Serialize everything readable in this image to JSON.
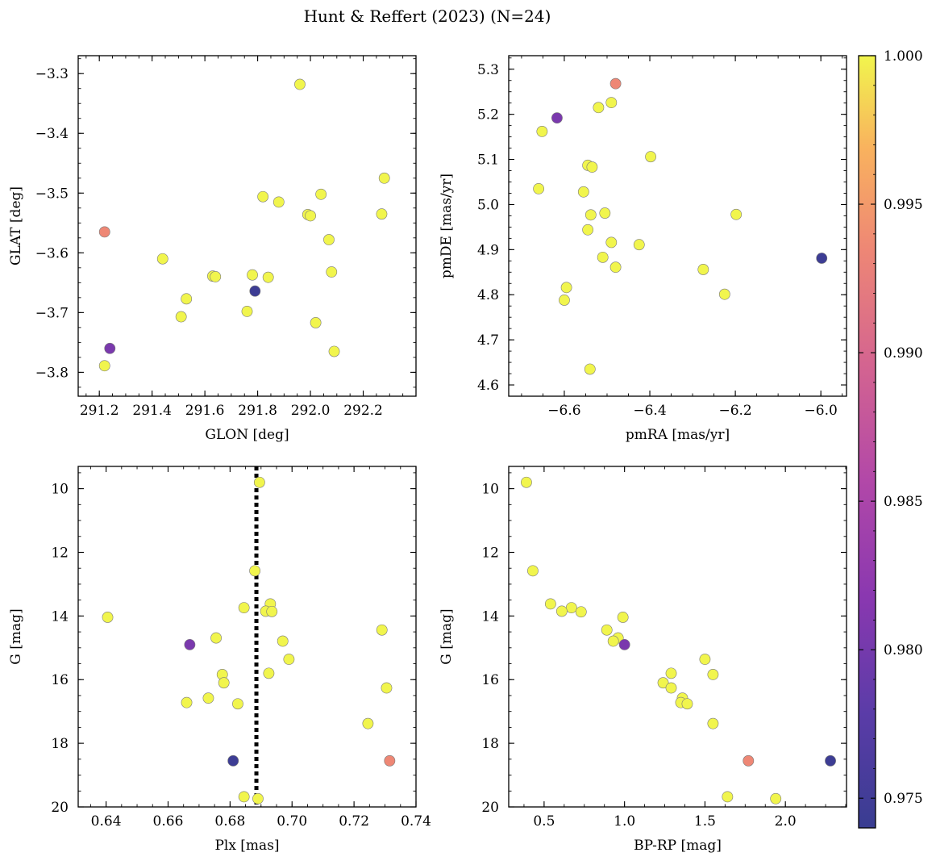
{
  "figure": {
    "title": "Hunt & Reffert (2023) (N=24)"
  },
  "colorbar": {
    "vmin": 0.974,
    "vmax": 1.0,
    "colormap": "plasma",
    "ticks": [
      0.975,
      0.98,
      0.985,
      0.99,
      0.995,
      1.0
    ],
    "tick_labels": [
      "0.975",
      "0.980",
      "0.985",
      "0.990",
      "0.995",
      "1.000"
    ]
  },
  "chart_data": [
    {
      "type": "scatter",
      "xlabel": "GLON [deg]",
      "ylabel": "GLAT [deg]",
      "xlim": [
        291.12,
        292.4
      ],
      "ylim": [
        -3.84,
        -3.27
      ],
      "xticks": [
        291.2,
        291.4,
        291.6,
        291.8,
        292.0,
        292.2
      ],
      "xtick_labels": [
        "291.2",
        "291.4",
        "291.6",
        "291.8",
        "292.0",
        "292.2"
      ],
      "yticks": [
        -3.3,
        -3.4,
        -3.5,
        -3.6,
        -3.7,
        -3.8
      ],
      "ytick_labels": [
        "−3.3",
        "−3.4",
        "−3.5",
        "−3.6",
        "−3.7",
        "−3.8"
      ],
      "points": [
        {
          "x": 291.96,
          "y": -3.318,
          "c": 1.0
        },
        {
          "x": 292.28,
          "y": -3.475,
          "c": 1.0
        },
        {
          "x": 292.04,
          "y": -3.502,
          "c": 1.0
        },
        {
          "x": 291.82,
          "y": -3.506,
          "c": 1.0
        },
        {
          "x": 291.88,
          "y": -3.515,
          "c": 1.0
        },
        {
          "x": 291.99,
          "y": -3.536,
          "c": 1.0
        },
        {
          "x": 292.0,
          "y": -3.538,
          "c": 1.0
        },
        {
          "x": 292.27,
          "y": -3.535,
          "c": 1.0
        },
        {
          "x": 291.22,
          "y": -3.565,
          "c": 0.9935
        },
        {
          "x": 292.07,
          "y": -3.578,
          "c": 1.0
        },
        {
          "x": 291.44,
          "y": -3.61,
          "c": 1.0
        },
        {
          "x": 292.08,
          "y": -3.632,
          "c": 1.0
        },
        {
          "x": 291.63,
          "y": -3.639,
          "c": 1.0
        },
        {
          "x": 291.64,
          "y": -3.64,
          "c": 1.0
        },
        {
          "x": 291.78,
          "y": -3.637,
          "c": 1.0
        },
        {
          "x": 291.84,
          "y": -3.641,
          "c": 1.0
        },
        {
          "x": 291.79,
          "y": -3.664,
          "c": 0.9745
        },
        {
          "x": 291.53,
          "y": -3.677,
          "c": 1.0
        },
        {
          "x": 291.76,
          "y": -3.698,
          "c": 1.0
        },
        {
          "x": 291.51,
          "y": -3.707,
          "c": 1.0
        },
        {
          "x": 292.02,
          "y": -3.717,
          "c": 1.0
        },
        {
          "x": 291.24,
          "y": -3.76,
          "c": 0.9805
        },
        {
          "x": 292.09,
          "y": -3.765,
          "c": 1.0
        },
        {
          "x": 291.22,
          "y": -3.789,
          "c": 1.0
        }
      ]
    },
    {
      "type": "scatter",
      "xlabel": "pmRA [mas/yr]",
      "ylabel": "pmDE [mas/yr]",
      "xlim": [
        -6.73,
        -5.94
      ],
      "ylim": [
        4.575,
        5.33
      ],
      "xticks": [
        -6.6,
        -6.4,
        -6.2,
        -6.0
      ],
      "xtick_labels": [
        "−6.6",
        "−6.4",
        "−6.2",
        "−6.0"
      ],
      "yticks": [
        4.6,
        4.7,
        4.8,
        4.9,
        5.0,
        5.1,
        5.2,
        5.3
      ],
      "ytick_labels": [
        "4.6",
        "4.7",
        "4.8",
        "4.9",
        "5.0",
        "5.1",
        "5.2",
        "5.3"
      ],
      "points": [
        {
          "x": -6.48,
          "y": 5.268,
          "c": 0.9935
        },
        {
          "x": -6.49,
          "y": 5.226,
          "c": 1.0
        },
        {
          "x": -6.52,
          "y": 5.215,
          "c": 1.0
        },
        {
          "x": -6.617,
          "y": 5.192,
          "c": 0.9805
        },
        {
          "x": -6.652,
          "y": 5.162,
          "c": 1.0
        },
        {
          "x": -6.398,
          "y": 5.106,
          "c": 1.0
        },
        {
          "x": -6.545,
          "y": 5.087,
          "c": 1.0
        },
        {
          "x": -6.535,
          "y": 5.083,
          "c": 1.0
        },
        {
          "x": -6.66,
          "y": 5.035,
          "c": 1.0
        },
        {
          "x": -6.555,
          "y": 5.028,
          "c": 1.0
        },
        {
          "x": -6.505,
          "y": 4.981,
          "c": 1.0
        },
        {
          "x": -6.538,
          "y": 4.977,
          "c": 1.0
        },
        {
          "x": -6.198,
          "y": 4.978,
          "c": 1.0
        },
        {
          "x": -6.545,
          "y": 4.944,
          "c": 1.0
        },
        {
          "x": -6.49,
          "y": 4.916,
          "c": 1.0
        },
        {
          "x": -6.425,
          "y": 4.911,
          "c": 1.0
        },
        {
          "x": -6.51,
          "y": 4.883,
          "c": 1.0
        },
        {
          "x": -5.998,
          "y": 4.881,
          "c": 0.9745
        },
        {
          "x": -6.48,
          "y": 4.861,
          "c": 1.0
        },
        {
          "x": -6.275,
          "y": 4.856,
          "c": 1.0
        },
        {
          "x": -6.595,
          "y": 4.816,
          "c": 1.0
        },
        {
          "x": -6.225,
          "y": 4.801,
          "c": 1.0
        },
        {
          "x": -6.6,
          "y": 4.788,
          "c": 1.0
        },
        {
          "x": -6.54,
          "y": 4.635,
          "c": 1.0
        }
      ]
    },
    {
      "type": "scatter",
      "xlabel": "Plx [mas]",
      "ylabel": "G [mag]",
      "xlim": [
        0.631,
        0.74
      ],
      "ylim": [
        20.0,
        9.3
      ],
      "y_inverted": true,
      "xticks": [
        0.64,
        0.66,
        0.68,
        0.7,
        0.72,
        0.74
      ],
      "xtick_labels": [
        "0.64",
        "0.66",
        "0.68",
        "0.70",
        "0.72",
        "0.74"
      ],
      "yticks": [
        10,
        12,
        14,
        16,
        18,
        20
      ],
      "ytick_labels": [
        "10",
        "12",
        "14",
        "16",
        "18",
        "20"
      ],
      "vline": {
        "x": 0.6885,
        "style": "dotted"
      },
      "points": [
        {
          "x": 0.6895,
          "y": 9.8,
          "c": 1.0
        },
        {
          "x": 0.688,
          "y": 12.58,
          "c": 1.0
        },
        {
          "x": 0.693,
          "y": 13.62,
          "c": 1.0
        },
        {
          "x": 0.6845,
          "y": 13.74,
          "c": 1.0
        },
        {
          "x": 0.6915,
          "y": 13.85,
          "c": 1.0
        },
        {
          "x": 0.6935,
          "y": 13.86,
          "c": 1.0
        },
        {
          "x": 0.6405,
          "y": 14.04,
          "c": 1.0
        },
        {
          "x": 0.729,
          "y": 14.44,
          "c": 1.0
        },
        {
          "x": 0.6755,
          "y": 14.69,
          "c": 1.0
        },
        {
          "x": 0.697,
          "y": 14.79,
          "c": 1.0
        },
        {
          "x": 0.667,
          "y": 14.9,
          "c": 0.9805
        },
        {
          "x": 0.699,
          "y": 15.36,
          "c": 1.0
        },
        {
          "x": 0.6925,
          "y": 15.8,
          "c": 1.0
        },
        {
          "x": 0.6775,
          "y": 15.84,
          "c": 1.0
        },
        {
          "x": 0.678,
          "y": 16.1,
          "c": 1.0
        },
        {
          "x": 0.7305,
          "y": 16.26,
          "c": 1.0
        },
        {
          "x": 0.673,
          "y": 16.58,
          "c": 1.0
        },
        {
          "x": 0.666,
          "y": 16.72,
          "c": 1.0
        },
        {
          "x": 0.6825,
          "y": 16.76,
          "c": 1.0
        },
        {
          "x": 0.7245,
          "y": 17.38,
          "c": 1.0
        },
        {
          "x": 0.681,
          "y": 18.55,
          "c": 0.9745
        },
        {
          "x": 0.7315,
          "y": 18.55,
          "c": 0.9935
        },
        {
          "x": 0.6845,
          "y": 19.68,
          "c": 1.0
        },
        {
          "x": 0.689,
          "y": 19.74,
          "c": 1.0
        }
      ]
    },
    {
      "type": "scatter",
      "xlabel": "BP-RP [mag]",
      "ylabel": "G [mag]",
      "xlim": [
        0.28,
        2.38
      ],
      "ylim": [
        20.0,
        9.3
      ],
      "y_inverted": true,
      "xticks": [
        0.5,
        1.0,
        1.5,
        2.0
      ],
      "xtick_labels": [
        "0.5",
        "1.0",
        "1.5",
        "2.0"
      ],
      "yticks": [
        10,
        12,
        14,
        16,
        18,
        20
      ],
      "ytick_labels": [
        "10",
        "12",
        "14",
        "16",
        "18",
        "20"
      ],
      "points": [
        {
          "x": 0.39,
          "y": 9.8,
          "c": 1.0
        },
        {
          "x": 0.43,
          "y": 12.58,
          "c": 1.0
        },
        {
          "x": 0.54,
          "y": 13.62,
          "c": 1.0
        },
        {
          "x": 0.67,
          "y": 13.74,
          "c": 1.0
        },
        {
          "x": 0.61,
          "y": 13.85,
          "c": 1.0
        },
        {
          "x": 0.73,
          "y": 13.87,
          "c": 1.0
        },
        {
          "x": 0.99,
          "y": 14.04,
          "c": 1.0
        },
        {
          "x": 0.89,
          "y": 14.44,
          "c": 1.0
        },
        {
          "x": 0.96,
          "y": 14.69,
          "c": 1.0
        },
        {
          "x": 0.93,
          "y": 14.79,
          "c": 1.0
        },
        {
          "x": 1.0,
          "y": 14.9,
          "c": 0.9805
        },
        {
          "x": 1.5,
          "y": 15.36,
          "c": 1.0
        },
        {
          "x": 1.29,
          "y": 15.8,
          "c": 1.0
        },
        {
          "x": 1.55,
          "y": 15.84,
          "c": 1.0
        },
        {
          "x": 1.24,
          "y": 16.1,
          "c": 1.0
        },
        {
          "x": 1.29,
          "y": 16.26,
          "c": 1.0
        },
        {
          "x": 1.36,
          "y": 16.58,
          "c": 1.0
        },
        {
          "x": 1.35,
          "y": 16.72,
          "c": 1.0
        },
        {
          "x": 1.39,
          "y": 16.76,
          "c": 1.0
        },
        {
          "x": 1.55,
          "y": 17.38,
          "c": 1.0
        },
        {
          "x": 1.77,
          "y": 18.55,
          "c": 0.9935
        },
        {
          "x": 2.28,
          "y": 18.55,
          "c": 0.9745
        },
        {
          "x": 1.64,
          "y": 19.68,
          "c": 1.0
        },
        {
          "x": 1.94,
          "y": 19.74,
          "c": 1.0
        }
      ]
    }
  ]
}
